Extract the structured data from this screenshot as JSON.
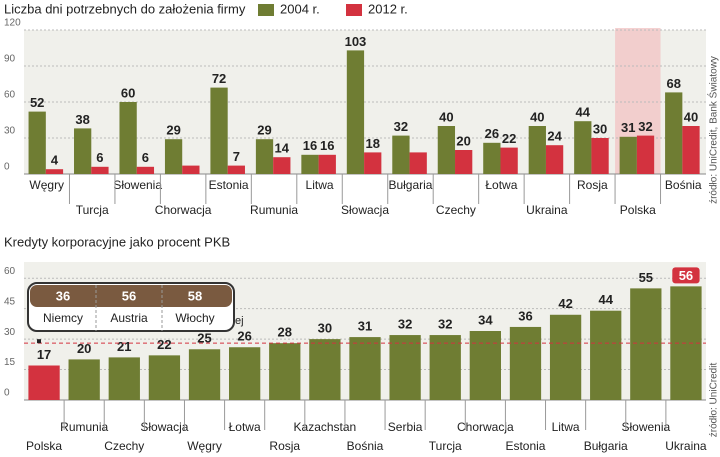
{
  "chart_data": [
    {
      "type": "bar",
      "title": "Liczba dni potrzebnych do założenia firmy",
      "source": "źródło: UniCredit, Bank Światowy",
      "categories": [
        "Węgry",
        "Turcja",
        "Słowenia",
        "Chorwacja",
        "Estonia",
        "Rumunia",
        "Litwa",
        "Słowacja",
        "Bułgaria",
        "Czechy",
        "Łotwa",
        "Ukraina",
        "Rosja",
        "Polska",
        "Bośnia"
      ],
      "series": [
        {
          "name": "2004 r.",
          "color": "#6f7d33",
          "values": [
            52,
            38,
            60,
            29,
            72,
            29,
            16,
            103,
            32,
            40,
            26,
            40,
            44,
            31,
            68
          ]
        },
        {
          "name": "2012 r.",
          "color": "#d3323f",
          "values": [
            4,
            6,
            6,
            7,
            7,
            14,
            16,
            18,
            18,
            20,
            22,
            24,
            30,
            32,
            40
          ],
          "value_labels": [
            "4",
            "6",
            "6",
            null,
            "7",
            "14",
            "16",
            "18",
            null,
            "20",
            "22",
            "24",
            "30",
            "32",
            "40"
          ]
        }
      ],
      "ylim": [
        0,
        120
      ],
      "yticks": [
        0,
        30,
        60,
        90,
        120
      ],
      "grid": true
    },
    {
      "type": "bar",
      "title": "Kredyty korporacyjne jako procent PKB",
      "source": "źródło: UniCredit",
      "categories": [
        "Polska",
        "Rumunia",
        "Czechy",
        "Słowacja",
        "Węgry",
        "Łotwa",
        "Rosja",
        "Kazachstan",
        "Bośnia",
        "Serbia",
        "Turcja",
        "Chorwacja",
        "Estonia",
        "Litwa",
        "Bułgaria",
        "Słowenia",
        "Ukraina"
      ],
      "values": [
        17,
        20,
        21,
        22,
        25,
        26,
        28,
        30,
        31,
        32,
        32,
        34,
        36,
        42,
        44,
        55,
        56
      ],
      "colors": [
        "#d3323f",
        "#6f7d33",
        "#6f7d33",
        "#6f7d33",
        "#6f7d33",
        "#6f7d33",
        "#6f7d33",
        "#6f7d33",
        "#6f7d33",
        "#6f7d33",
        "#6f7d33",
        "#6f7d33",
        "#6f7d33",
        "#6f7d33",
        "#6f7d33",
        "#6f7d33",
        "#6f7d33"
      ],
      "mean": 28,
      "mean_label": "średnia dla Europy Środkowo Wschodniej",
      "inset": [
        {
          "name": "Niemcy",
          "value": 36
        },
        {
          "name": "Austria",
          "value": 56
        },
        {
          "name": "Włochy",
          "value": 58
        }
      ],
      "ylim": [
        0,
        68
      ],
      "yticks": [
        0,
        15,
        30,
        45,
        60
      ],
      "grid": true
    }
  ]
}
